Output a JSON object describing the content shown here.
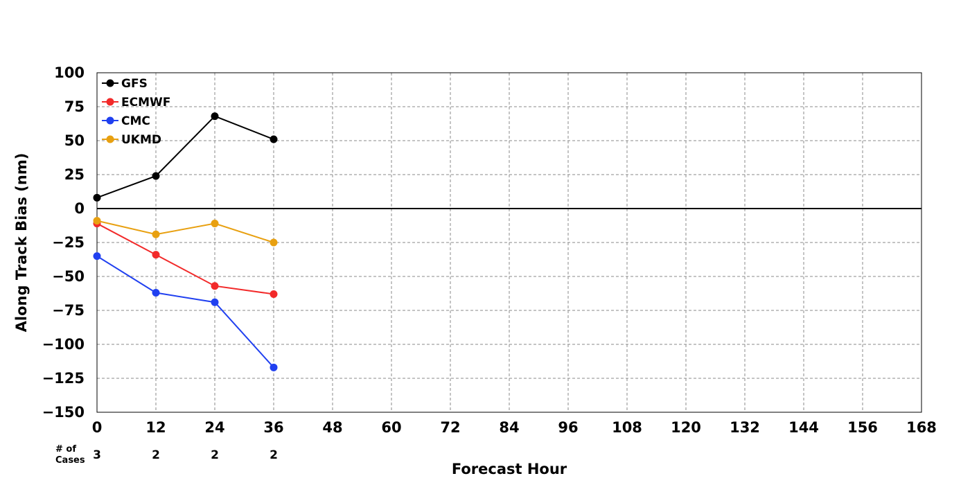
{
  "chart_data": {
    "type": "line",
    "xlabel": "Forecast Hour",
    "ylabel": "Along Track Bias (nm)",
    "xlim": [
      0,
      168
    ],
    "ylim": [
      -150,
      100
    ],
    "x_ticks": [
      "0",
      "12",
      "24",
      "36",
      "48",
      "60",
      "72",
      "84",
      "96",
      "108",
      "120",
      "132",
      "144",
      "156",
      "168"
    ],
    "y_ticks": [
      "100",
      "75",
      "50",
      "25",
      "0",
      "−25",
      "−50",
      "−75",
      "−100",
      "−125",
      "−150"
    ],
    "grid": true,
    "legend_position": "top-left",
    "x": [
      0,
      12,
      24,
      36
    ],
    "series": [
      {
        "name": "GFS",
        "color": "#000000",
        "values": [
          8,
          24,
          68,
          51
        ]
      },
      {
        "name": "ECMWF",
        "color": "#f22a2a",
        "values": [
          -11,
          -34,
          -57,
          -63
        ]
      },
      {
        "name": "CMC",
        "color": "#2040f0",
        "values": [
          -35,
          -62,
          -69,
          -117
        ]
      },
      {
        "name": "UKMD",
        "color": "#e8a010",
        "values": [
          -9,
          -19,
          -11,
          -25
        ]
      }
    ],
    "cases": {
      "label_line1": "# of",
      "label_line2": "Cases",
      "values": [
        "3",
        "2",
        "2",
        "2"
      ]
    }
  }
}
